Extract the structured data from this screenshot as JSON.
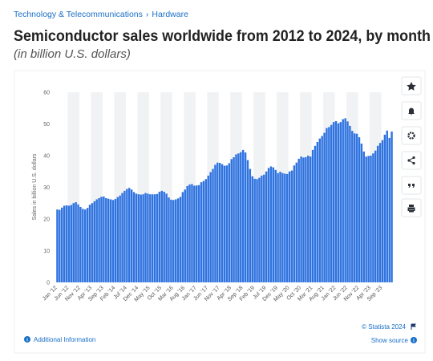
{
  "breadcrumb": [
    "Technology & Telecommunications",
    "Hardware"
  ],
  "footer": {
    "copyright": "© Statista 2024",
    "additional": "Additional Information",
    "source": "Show source"
  },
  "chart_data": {
    "type": "bar",
    "title": "Semiconductor sales worldwide from 2012 to 2024, by month",
    "subtitle": "(in billion U.S. dollars)",
    "y_label": "Sales in billion U.S. dollars",
    "color": "#2f73e0",
    "ylim": [
      0,
      60
    ],
    "yticks": [
      0,
      10,
      20,
      30,
      40,
      50,
      60
    ],
    "categories": [
      "Jan '12",
      null,
      null,
      null,
      null,
      "Jun '12",
      null,
      null,
      null,
      null,
      "Nov '12",
      null,
      null,
      null,
      null,
      "Apr '13",
      null,
      null,
      null,
      null,
      "Sep '13",
      null,
      null,
      null,
      null,
      "Feb '14",
      null,
      null,
      null,
      null,
      "Jul '14",
      null,
      null,
      null,
      null,
      "Dec '14",
      null,
      null,
      null,
      null,
      "May '15",
      null,
      null,
      null,
      null,
      "Oct '15",
      null,
      null,
      null,
      null,
      "Mar '16",
      null,
      null,
      null,
      null,
      "Aug '16",
      null,
      null,
      null,
      null,
      "Jan '17",
      null,
      null,
      null,
      null,
      "Jun '17",
      null,
      null,
      null,
      null,
      "Nov '17",
      null,
      null,
      null,
      null,
      "Apr '18",
      null,
      null,
      null,
      null,
      "Sep '18",
      null,
      null,
      null,
      null,
      "Feb '19",
      null,
      null,
      null,
      null,
      "Jul '19",
      null,
      null,
      null,
      null,
      "Dec '19",
      null,
      null,
      null,
      null,
      "May '20",
      null,
      null,
      null,
      null,
      "Oct '20",
      null,
      null,
      null,
      null,
      "Mar '21",
      null,
      null,
      null,
      null,
      "Aug '21",
      null,
      null,
      null,
      null,
      "Jan '22",
      null,
      null,
      null,
      null,
      "Jun '22",
      null,
      null,
      null,
      null,
      "Nov '22",
      null,
      null,
      null,
      null,
      "Apr '23",
      null,
      null,
      null,
      null,
      "Sep '23",
      null,
      null,
      null,
      null
    ],
    "values": [
      23.0,
      22.9,
      23.6,
      24.2,
      24.3,
      24.2,
      24.4,
      25.0,
      25.3,
      24.6,
      23.8,
      23.2,
      23.0,
      23.5,
      24.5,
      25.0,
      25.6,
      26.2,
      26.6,
      27.0,
      27.1,
      26.6,
      26.4,
      26.2,
      26.0,
      26.3,
      26.9,
      27.4,
      28.2,
      28.9,
      29.5,
      29.8,
      29.3,
      28.5,
      28.0,
      27.8,
      27.7,
      27.8,
      28.2,
      28.0,
      27.8,
      27.8,
      27.8,
      27.9,
      28.6,
      28.9,
      28.6,
      28.0,
      26.8,
      26.1,
      26.0,
      26.2,
      26.5,
      27.0,
      28.5,
      29.3,
      30.4,
      30.9,
      31.0,
      30.5,
      30.6,
      30.7,
      31.6,
      32.0,
      32.6,
      33.7,
      34.8,
      35.8,
      37.1,
      37.8,
      37.7,
      37.3,
      36.8,
      36.9,
      37.6,
      38.9,
      39.5,
      40.4,
      40.7,
      41.1,
      41.8,
      41.0,
      38.6,
      35.8,
      33.5,
      32.7,
      32.6,
      33.0,
      33.7,
      34.0,
      35.0,
      36.1,
      36.6,
      36.3,
      35.5,
      34.5,
      34.9,
      34.5,
      34.3,
      34.2,
      35.0,
      35.3,
      36.9,
      37.8,
      39.0,
      39.7,
      39.4,
      39.5,
      40.0,
      39.7,
      41.8,
      43.1,
      44.3,
      45.4,
      46.2,
      47.2,
      48.7,
      49.0,
      49.7,
      50.6,
      50.9,
      50.2,
      50.6,
      51.5,
      51.8,
      50.8,
      49.4,
      47.8,
      47.0,
      46.9,
      45.8,
      43.8,
      41.3,
      39.7,
      39.9,
      40.0,
      40.7,
      41.6,
      43.1,
      44.0,
      44.9,
      46.6,
      47.9,
      45.6,
      47.6
    ]
  }
}
